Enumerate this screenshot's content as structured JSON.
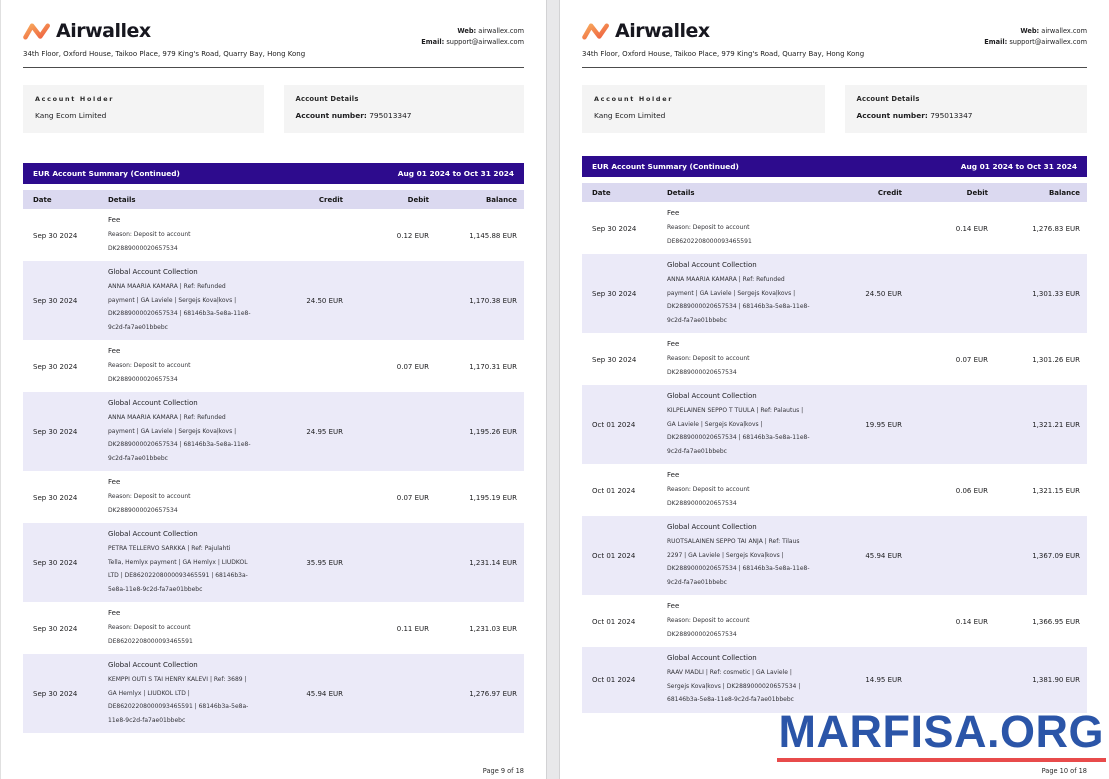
{
  "brand": {
    "logo_text": "Airwallex",
    "address": "34th Floor, Oxford House, Taikoo Place, 979 King's Road, Quarry Bay, Hong Kong",
    "web_label": "Web:",
    "web_value": "airwallex.com",
    "email_label": "Email:",
    "email_value": "support@airwallex.com"
  },
  "account": {
    "holder_label": "Account Holder",
    "holder_name": "Kang Ecom Limited",
    "details_label": "Account Details",
    "number_label": "Account number:",
    "number_value": "795013347"
  },
  "table": {
    "title": "EUR Account Summary (Continued)",
    "date_range": "Aug 01 2024 to Oct 31 2024",
    "columns": {
      "date": "Date",
      "details": "Details",
      "credit": "Credit",
      "debit": "Debit",
      "balance": "Balance"
    }
  },
  "colors": {
    "header_purple": "#2d0b8d",
    "column_header_lavender": "#dbd9f0",
    "row_lavender": "#ebeaf8",
    "logo_orange_start": "#f7a85c",
    "logo_orange_end": "#ee5f3f",
    "watermark_blue": "#2b55a8",
    "watermark_underline_red": "#e84b4b"
  },
  "pages": [
    {
      "footer": "Page 9 of 18",
      "rows": [
        {
          "date": "Sep 30 2024",
          "details": [
            "Fee",
            "Reason: Deposit to account",
            "DK2889000020657534"
          ],
          "credit": "",
          "debit": "0.12 EUR",
          "balance": "1,145.88 EUR"
        },
        {
          "date": "Sep 30 2024",
          "details": [
            "Global Account Collection",
            "ANNA MAARIA KAMARA | Ref: Refunded",
            "payment | GA Laviele | Sergejs Kovaļkovs |",
            "DK2889000020657534 | 68146b3a-5e8a-11e8-",
            "9c2d-fa7ae01bbebc"
          ],
          "credit": "24.50 EUR",
          "debit": "",
          "balance": "1,170.38 EUR"
        },
        {
          "date": "Sep 30 2024",
          "details": [
            "Fee",
            "Reason: Deposit to account",
            "DK2889000020657534"
          ],
          "credit": "",
          "debit": "0.07 EUR",
          "balance": "1,170.31 EUR"
        },
        {
          "date": "Sep 30 2024",
          "details": [
            "Global Account Collection",
            "ANNA MAARIA KAMARA | Ref: Refunded",
            "payment | GA Laviele | Sergejs Kovaļkovs |",
            "DK2889000020657534 | 68146b3a-5e8a-11e8-",
            "9c2d-fa7ae01bbebc"
          ],
          "credit": "24.95 EUR",
          "debit": "",
          "balance": "1,195.26 EUR"
        },
        {
          "date": "Sep 30 2024",
          "details": [
            "Fee",
            "Reason: Deposit to account",
            "DK2889000020657534"
          ],
          "credit": "",
          "debit": "0.07 EUR",
          "balance": "1,195.19 EUR"
        },
        {
          "date": "Sep 30 2024",
          "details": [
            "Global Account Collection",
            "PETRA TELLERVO SARKKA | Ref: Pajulahti",
            "Tella, Hemlyx payment | GA Hemlyx | LIUDKOL",
            "LTD | DE86202208000093465591 | 68146b3a-",
            "5e8a-11e8-9c2d-fa7ae01bbebc"
          ],
          "credit": "35.95 EUR",
          "debit": "",
          "balance": "1,231.14 EUR"
        },
        {
          "date": "Sep 30 2024",
          "details": [
            "Fee",
            "Reason: Deposit to account",
            "DE86202208000093465591"
          ],
          "credit": "",
          "debit": "0.11 EUR",
          "balance": "1,231.03 EUR"
        },
        {
          "date": "Sep 30 2024",
          "details": [
            "Global Account Collection",
            "KEMPPI OUTI S TAI HENRY KALEVI | Ref: 3689 |",
            "GA Hemlyx | LIUDKOL LTD |",
            "DE86202208000093465591 | 68146b3a-5e8a-",
            "11e8-9c2d-fa7ae01bbebc"
          ],
          "credit": "45.94 EUR",
          "debit": "",
          "balance": "1,276.97 EUR"
        }
      ]
    },
    {
      "footer": "Page 10 of 18",
      "watermark_text": "MARFISA.ORG",
      "rows": [
        {
          "date": "Sep 30 2024",
          "details": [
            "Fee",
            "Reason: Deposit to account",
            "DE86202208000093465591"
          ],
          "credit": "",
          "debit": "0.14 EUR",
          "balance": "1,276.83 EUR"
        },
        {
          "date": "Sep 30 2024",
          "details": [
            "Global Account Collection",
            "ANNA MAARIA KAMARA | Ref: Refunded",
            "payment | GA Laviele | Sergejs Kovaļkovs |",
            "DK2889000020657534 | 68146b3a-5e8a-11e8-",
            "9c2d-fa7ae01bbebc"
          ],
          "credit": "24.50 EUR",
          "debit": "",
          "balance": "1,301.33 EUR"
        },
        {
          "date": "Sep 30 2024",
          "details": [
            "Fee",
            "Reason: Deposit to account",
            "DK2889000020657534"
          ],
          "credit": "",
          "debit": "0.07 EUR",
          "balance": "1,301.26 EUR"
        },
        {
          "date": "Oct 01 2024",
          "details": [
            "Global Account Collection",
            "KILPELAINEN SEPPO T TUULA | Ref: Palautus |",
            "GA Laviele | Sergejs Kovaļkovs |",
            "DK2889000020657534 | 68146b3a-5e8a-11e8-",
            "9c2d-fa7ae01bbebc"
          ],
          "credit": "19.95 EUR",
          "debit": "",
          "balance": "1,321.21 EUR"
        },
        {
          "date": "Oct 01 2024",
          "details": [
            "Fee",
            "Reason: Deposit to account",
            "DK2889000020657534"
          ],
          "credit": "",
          "debit": "0.06 EUR",
          "balance": "1,321.15 EUR"
        },
        {
          "date": "Oct 01 2024",
          "details": [
            "Global Account Collection",
            "RUOTSALAINEN SEPPO TAI ANJA | Ref: Tilaus",
            "2297 | GA Laviele | Sergejs Kovaļkovs |",
            "DK2889000020657534 | 68146b3a-5e8a-11e8-",
            "9c2d-fa7ae01bbebc"
          ],
          "credit": "45.94 EUR",
          "debit": "",
          "balance": "1,367.09 EUR"
        },
        {
          "date": "Oct 01 2024",
          "details": [
            "Fee",
            "Reason: Deposit to account",
            "DK2889000020657534"
          ],
          "credit": "",
          "debit": "0.14 EUR",
          "balance": "1,366.95 EUR"
        },
        {
          "date": "Oct 01 2024",
          "details": [
            "Global Account Collection",
            "RAAV MADLI | Ref: cosmetic | GA Laviele |",
            "Sergejs Kovaļkovs | DK2889000020657534 |",
            "68146b3a-5e8a-11e8-9c2d-fa7ae01bbebc"
          ],
          "credit": "14.95 EUR",
          "debit": "",
          "balance": "1,381.90 EUR"
        }
      ]
    }
  ]
}
